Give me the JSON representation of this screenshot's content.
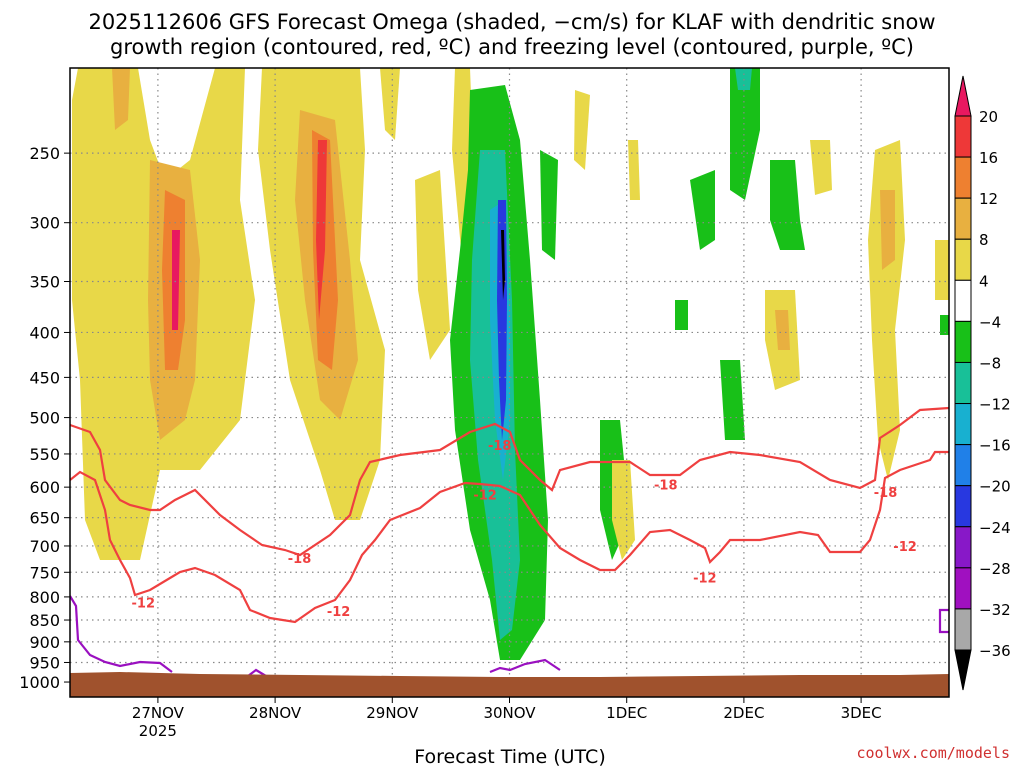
{
  "title_line1": "2025112606 GFS Forecast Omega (shaded, −cm/s) for KLAF with dendritic snow",
  "title_line2": "growth region (contoured, red, ºC) and freezing level (contoured, purple, ºC)",
  "credit": "coolwx.com/models",
  "colors": {
    "isotherm": "#ef4040",
    "freezing": "#9a10c0",
    "ground": "#a0522d",
    "grid": "#888888"
  },
  "chart_data": {
    "type": "heatmap",
    "xlabel": "Forecast Time (UTC)",
    "ylabel": "",
    "y_scale": "log-pressure (inverted)",
    "ylim_hPa": [
      1040,
      200
    ],
    "x_ticks": [
      {
        "label": "27NOV",
        "sub": "2025",
        "hour": 18
      },
      {
        "label": "28NOV",
        "sub": "",
        "hour": 42
      },
      {
        "label": "29NOV",
        "sub": "",
        "hour": 66
      },
      {
        "label": "30NOV",
        "sub": "",
        "hour": 90
      },
      {
        "label": "1DEC",
        "sub": "",
        "hour": 114
      },
      {
        "label": "2DEC",
        "sub": "",
        "hour": 138
      },
      {
        "label": "3DEC",
        "sub": "",
        "hour": 162
      }
    ],
    "xlim_hours": [
      0,
      180
    ],
    "y_ticks": [
      250,
      300,
      350,
      400,
      450,
      500,
      550,
      600,
      650,
      700,
      750,
      800,
      850,
      900,
      950,
      1000
    ],
    "colorbar": {
      "levels": [
        "20",
        "16",
        "12",
        "8",
        "4",
        "−4",
        "−8",
        "−12",
        "−16",
        "−20",
        "−24",
        "−28",
        "−32",
        "−36"
      ],
      "colors": [
        "#e81860",
        "#ee3838",
        "#ee8030",
        "#e8b040",
        "#e8d848",
        "#ffffff",
        "#18c018",
        "#18c098",
        "#18b0d0",
        "#2080e8",
        "#2838e0",
        "#8818c8",
        "#a010c0",
        "#a8a8a8",
        "#000000"
      ]
    },
    "contours": [
      {
        "name": "-18",
        "color": "#ef4040",
        "labels": [
          {
            "text": "-18",
            "hour": 47,
            "p": 722
          },
          {
            "text": "-18",
            "hour": 88,
            "p": 537
          },
          {
            "text": "-18",
            "hour": 122,
            "p": 596
          },
          {
            "text": "-18",
            "hour": 167,
            "p": 608
          }
        ]
      },
      {
        "name": "-12",
        "color": "#ef4040",
        "labels": [
          {
            "text": "-12",
            "hour": 15,
            "p": 812
          },
          {
            "text": "-12",
            "hour": 55,
            "p": 830
          },
          {
            "text": "-12",
            "hour": 85,
            "p": 612
          },
          {
            "text": "-12",
            "hour": 130,
            "p": 760
          },
          {
            "text": "-12",
            "hour": 171,
            "p": 700
          }
        ]
      },
      {
        "name": "0",
        "color": "#9a10c0",
        "labels": []
      }
    ],
    "shaded_regions": [
      {
        "value_min": 4,
        "value_max": 8,
        "hour_range": [
          0,
          18
        ],
        "p_range": [
          230,
          720
        ]
      },
      {
        "value_min": 8,
        "value_max": 16,
        "hour_range": [
          19,
          24
        ],
        "p_range": [
          280,
          480
        ]
      },
      {
        "value_min": 16,
        "value_max": 20,
        "hour_range": [
          21,
          22
        ],
        "p_range": [
          310,
          400
        ]
      },
      {
        "value_min": 4,
        "value_max": 8,
        "hour_range": [
          33,
          62
        ],
        "p_range": [
          210,
          700
        ]
      },
      {
        "value_min": 12,
        "value_max": 20,
        "hour_range": [
          44,
          50
        ],
        "p_range": [
          250,
          480
        ]
      },
      {
        "value_min": -12,
        "value_max": -4,
        "hour_range": [
          80,
          100
        ],
        "p_range": [
          210,
          950
        ]
      },
      {
        "value_min": -32,
        "value_max": -20,
        "hour_range": [
          90,
          91
        ],
        "p_range": [
          290,
          560
        ]
      },
      {
        "value_min": -12,
        "value_max": -4,
        "hour_range": [
          128,
          150
        ],
        "p_range": [
          210,
          500
        ]
      },
      {
        "value_min": 4,
        "value_max": 8,
        "hour_range": [
          165,
          172
        ],
        "p_range": [
          230,
          600
        ]
      }
    ]
  }
}
